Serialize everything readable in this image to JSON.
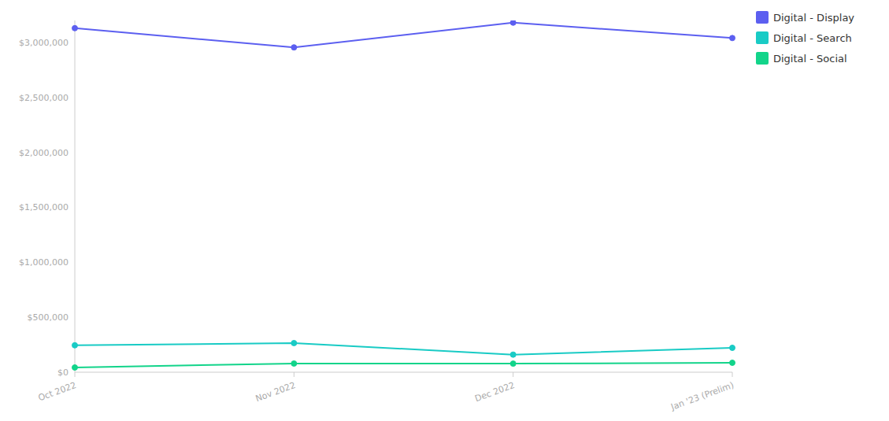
{
  "chart_data": {
    "type": "line",
    "categories": [
      "Oct 2022",
      "Nov 2022",
      "Dec 2022",
      "Jan '23 (Prelim)"
    ],
    "series": [
      {
        "name": "Digital - Display",
        "color": "#5c5ff0",
        "values": [
          3130000,
          2955000,
          3180000,
          3040000
        ]
      },
      {
        "name": "Digital - Search",
        "color": "#19cbc5",
        "values": [
          245000,
          265000,
          160000,
          222000
        ]
      },
      {
        "name": "Digital - Social",
        "color": "#12d48a",
        "values": [
          43000,
          79000,
          78000,
          86000
        ]
      }
    ],
    "ylim": [
      0,
      3200000
    ],
    "yticks": [
      {
        "value": 0,
        "label": "$0"
      },
      {
        "value": 500000,
        "label": "$500,000"
      },
      {
        "value": 1000000,
        "label": "$1,000,000"
      },
      {
        "value": 1500000,
        "label": "$1,500,000"
      },
      {
        "value": 2000000,
        "label": "$2,000,000"
      },
      {
        "value": 2500000,
        "label": "$2,500,000"
      },
      {
        "value": 3000000,
        "label": "$3,000,000"
      }
    ],
    "grid": false,
    "legend": "top-right",
    "marker": "circle"
  }
}
